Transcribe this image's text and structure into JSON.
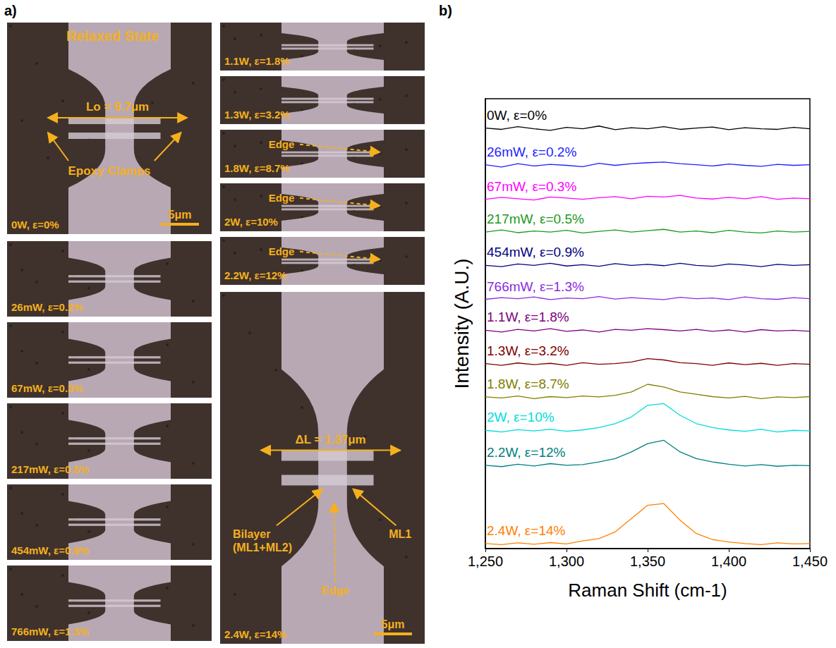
{
  "panel_a": {
    "label": "a)",
    "left_column": [
      {
        "caption": "0W, ε=0%",
        "title": "Relaxed State",
        "length": "Lo = 9.7μm",
        "clamps": "Epoxy Clamps",
        "scale_bar": "5μm"
      },
      {
        "caption": "26mW, ε=0.2%"
      },
      {
        "caption": "67mW, ε=0.3%"
      },
      {
        "caption": "217mW, ε=0.5%"
      },
      {
        "caption": "454mW, ε=0.9%"
      },
      {
        "caption": "766mW, ε=1.3%"
      }
    ],
    "right_column": [
      {
        "caption": "1.1W, ε=1.8%"
      },
      {
        "caption": "1.3W, ε=3.2%"
      },
      {
        "caption": "1.8W, ε=8.7%",
        "edge": "Edge"
      },
      {
        "caption": "2W, ε=10%",
        "edge": "Edge"
      },
      {
        "caption": "2.2W, ε=12%",
        "edge": "Edge"
      },
      {
        "caption": "2.4W, ε=14%",
        "length": "ΔL = 1.37μm",
        "bilayer": [
          "Bilayer",
          "(ML1+ML2)"
        ],
        "edge_below": "Edge",
        "ml1": "ML1",
        "scale_bar": "5μm"
      }
    ]
  },
  "panel_b": {
    "label": "b)"
  },
  "chart_data": {
    "type": "line",
    "x_label": "Raman Shift (cm-1)",
    "y_label": "Intensity (A.U.)",
    "xlim": [
      1250,
      1450
    ],
    "xticks": [
      1250,
      1300,
      1350,
      1400,
      1450
    ],
    "ylim": [
      0,
      13.5
    ],
    "tick_labels": "x",
    "grid": false,
    "x": [
      1250,
      1260,
      1270,
      1280,
      1290,
      1300,
      1310,
      1320,
      1330,
      1340,
      1350,
      1360,
      1370,
      1380,
      1390,
      1400,
      1410,
      1420,
      1430,
      1440,
      1450
    ],
    "series": [
      {
        "name": "0W, ε=0%",
        "color": "#000000",
        "values": [
          12.62,
          12.58,
          12.66,
          12.6,
          12.55,
          12.64,
          12.6,
          12.68,
          12.57,
          12.63,
          12.6,
          12.66,
          12.58,
          12.62,
          12.65,
          12.57,
          12.63,
          12.6,
          12.58,
          12.64,
          12.6
        ]
      },
      {
        "name": "26mW, ε=0.2%",
        "color": "#1f1fff",
        "values": [
          11.52,
          11.45,
          11.55,
          11.48,
          11.53,
          11.5,
          11.46,
          11.56,
          11.5,
          11.55,
          11.58,
          11.6,
          11.55,
          11.52,
          11.48,
          11.54,
          11.5,
          11.47,
          11.53,
          11.5,
          11.52
        ]
      },
      {
        "name": "67mW, ε=0.3%",
        "color": "#ff00ff",
        "values": [
          10.48,
          10.54,
          10.5,
          10.46,
          10.55,
          10.52,
          10.48,
          10.53,
          10.56,
          10.5,
          10.57,
          10.55,
          10.6,
          10.52,
          10.49,
          10.54,
          10.5,
          10.56,
          10.48,
          10.52,
          10.5
        ]
      },
      {
        "name": "217mW, ε=0.5%",
        "color": "#1a9a1a",
        "values": [
          9.5,
          9.56,
          9.48,
          9.53,
          9.5,
          9.55,
          9.47,
          9.52,
          9.56,
          9.5,
          9.54,
          9.58,
          9.5,
          9.53,
          9.48,
          9.55,
          9.5,
          9.47,
          9.53,
          9.5,
          9.52
        ]
      },
      {
        "name": "454mW, ε=0.9%",
        "color": "#000080",
        "values": [
          8.5,
          8.46,
          8.54,
          8.5,
          8.56,
          8.48,
          8.52,
          8.47,
          8.55,
          8.5,
          8.53,
          8.49,
          8.56,
          8.5,
          8.47,
          8.54,
          8.51,
          8.46,
          8.53,
          8.5,
          8.52
        ]
      },
      {
        "name": "766mW, ε=1.3%",
        "color": "#8a2be2",
        "values": [
          7.48,
          7.53,
          7.5,
          7.55,
          7.47,
          7.52,
          7.5,
          7.56,
          7.49,
          7.53,
          7.5,
          7.47,
          7.54,
          7.5,
          7.52,
          7.47,
          7.55,
          7.5,
          7.48,
          7.53,
          7.5
        ]
      },
      {
        "name": "1.1W, ε=1.8%",
        "color": "#800080",
        "values": [
          6.55,
          6.5,
          6.58,
          6.53,
          6.6,
          6.52,
          6.56,
          6.5,
          6.58,
          6.55,
          6.6,
          6.57,
          6.53,
          6.58,
          6.52,
          6.56,
          6.5,
          6.57,
          6.53,
          6.55,
          6.52
        ]
      },
      {
        "name": "1.3W, ε=3.2%",
        "color": "#800000",
        "values": [
          5.55,
          5.5,
          5.57,
          5.52,
          5.56,
          5.5,
          5.58,
          5.53,
          5.55,
          5.6,
          5.7,
          5.66,
          5.58,
          5.55,
          5.5,
          5.57,
          5.52,
          5.56,
          5.5,
          5.55,
          5.53
        ]
      },
      {
        "name": "1.8W, ε=8.7%",
        "color": "#808000",
        "values": [
          4.55,
          4.52,
          4.58,
          4.5,
          4.56,
          4.53,
          4.58,
          4.55,
          4.6,
          4.7,
          4.93,
          4.85,
          4.7,
          4.63,
          4.56,
          4.52,
          4.57,
          4.5,
          4.55,
          4.53,
          4.56
        ]
      },
      {
        "name": "2W, ε=10%",
        "color": "#00dcdc",
        "values": [
          3.55,
          3.5,
          3.57,
          3.53,
          3.58,
          3.52,
          3.56,
          3.63,
          3.75,
          3.95,
          4.3,
          4.35,
          4.0,
          3.75,
          3.63,
          3.56,
          3.52,
          3.58,
          3.5,
          3.55,
          3.53
        ]
      },
      {
        "name": "2.2W, ε=12%",
        "color": "#008080",
        "values": [
          2.5,
          2.46,
          2.53,
          2.48,
          2.55,
          2.5,
          2.52,
          2.6,
          2.7,
          2.9,
          3.15,
          3.25,
          2.9,
          2.7,
          2.6,
          2.53,
          2.48,
          2.52,
          2.47,
          2.5,
          2.49
        ]
      },
      {
        "name": "2.4W, ε=14%",
        "color": "#ff8000",
        "values": [
          0.15,
          0.12,
          0.17,
          0.13,
          0.18,
          0.14,
          0.23,
          0.3,
          0.5,
          0.9,
          1.3,
          1.35,
          0.85,
          0.45,
          0.27,
          0.2,
          0.15,
          0.12,
          0.17,
          0.14,
          0.15
        ]
      }
    ]
  }
}
